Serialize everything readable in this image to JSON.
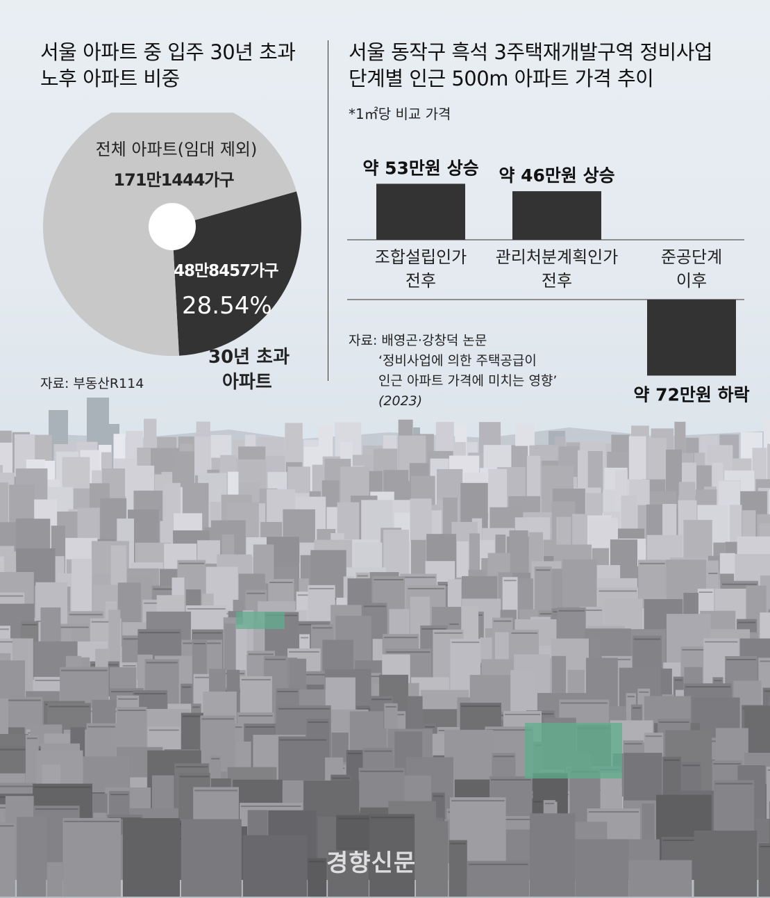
{
  "left_chart": {
    "title_line1": "서울 아파트 중 입주 30년 초과",
    "title_line2": "노후 아파트 비중",
    "total_label": "전체 아파트(임대 제외)",
    "total_value": "171만1444가구",
    "old_value": "48만8457가구",
    "old_percent": "28.54%",
    "old_label_line1": "30년 초과",
    "old_label_line2": "아파트",
    "source": "자료: 부동산R114"
  },
  "right_chart": {
    "title_line1": "서울 동작구 흑석 3주택재개발구역 정비사업",
    "title_line2": "단계별 인근 500m 아파트 가격 추이",
    "unit_note": "*1㎡당 비교 가격",
    "source_line1": "자료: 배영곤·강창덕 논문",
    "source_line2": "‘정비사업에 의한 주택공급이",
    "source_line3": "인근 아파트 가격에 미치는 영향’",
    "source_line4": "(2023)"
  },
  "chart_data": [
    {
      "type": "pie",
      "title": "서울 아파트 중 입주 30년 초과 노후 아파트 비중",
      "slices": [
        {
          "label": "전체 아파트(임대 제외)",
          "value": 71.46,
          "count": "171만1444가구",
          "color": "#c8c8c8"
        },
        {
          "label": "30년 초과 아파트",
          "value": 28.54,
          "count": "48만8457가구",
          "color": "#333333"
        }
      ]
    },
    {
      "type": "bar",
      "title": "서울 동작구 흑석 3주택재개발구역 정비사업 단계별 인근 500m 아파트 가격 추이",
      "categories": [
        {
          "line1": "조합설립인가",
          "line2": "전후"
        },
        {
          "line1": "관리처분계획인가",
          "line2": "전후"
        },
        {
          "line1": "준공단계",
          "line2": "이후"
        }
      ],
      "values": [
        53,
        46,
        -72
      ],
      "data_labels": [
        "약 53만원 상승",
        "약 46만원 상승",
        "약 72만원 하락"
      ],
      "color": "#333333"
    }
  ],
  "watermark": "경향신문"
}
